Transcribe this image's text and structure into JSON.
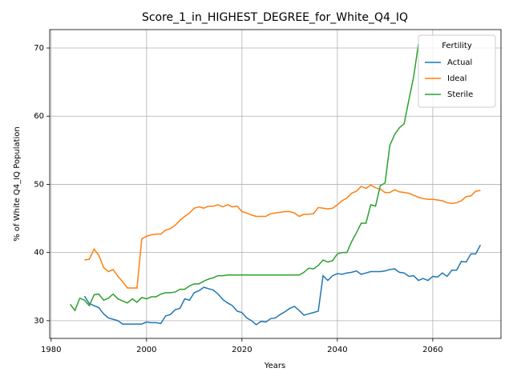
{
  "chart_data": {
    "type": "line",
    "title": "Score_1_in_HIGHEST_DEGREE_for_White_Q4_IQ",
    "xlabel": "Years",
    "ylabel": "% of White Q4_IQ Population",
    "legend_title": "Fertility",
    "legend": "upper right",
    "grid": true,
    "xlim": [
      1979.7,
      2074.3
    ],
    "xticks": [
      1980,
      2000,
      2020,
      2040,
      2060
    ],
    "ylim": [
      27.4,
      72.7
    ],
    "yticks": [
      30,
      40,
      50,
      60,
      70
    ],
    "x": [
      1984,
      1985,
      1986,
      1987,
      1988,
      1989,
      1990,
      1991,
      1992,
      1993,
      1994,
      1995,
      1996,
      1997,
      1998,
      1999,
      2000,
      2001,
      2002,
      2003,
      2004,
      2005,
      2006,
      2007,
      2008,
      2009,
      2010,
      2011,
      2012,
      2013,
      2014,
      2015,
      2016,
      2017,
      2018,
      2019,
      2020,
      2021,
      2022,
      2023,
      2024,
      2025,
      2026,
      2027,
      2028,
      2029,
      2030,
      2031,
      2032,
      2033,
      2034,
      2035,
      2036,
      2037,
      2038,
      2039,
      2040,
      2041,
      2042,
      2043,
      2044,
      2045,
      2046,
      2047,
      2048,
      2049,
      2050,
      2051,
      2052,
      2053,
      2054,
      2055,
      2056,
      2057,
      2058,
      2059,
      2060,
      2061,
      2062,
      2063,
      2064,
      2065,
      2066,
      2067,
      2068,
      2069,
      2070
    ],
    "series": [
      {
        "name": "Actual",
        "color": "#1f77b4",
        "values": [
          null,
          null,
          null,
          33.6,
          32.5,
          32.2,
          31.9,
          31.0,
          30.4,
          30.2,
          30.0,
          29.5,
          29.5,
          29.5,
          29.5,
          29.5,
          29.8,
          29.7,
          29.7,
          29.6,
          30.7,
          30.9,
          31.6,
          31.8,
          33.2,
          33.0,
          34.1,
          34.4,
          34.9,
          34.7,
          34.5,
          33.9,
          33.1,
          32.6,
          32.2,
          31.4,
          31.2,
          30.4,
          30.0,
          29.4,
          29.9,
          29.8,
          30.3,
          30.4,
          30.9,
          31.3,
          31.8,
          32.1,
          31.5,
          30.8,
          31.0,
          31.2,
          31.4,
          36.6,
          35.9,
          36.6,
          36.9,
          36.8,
          37.0,
          37.1,
          37.3,
          36.8,
          37.0,
          37.2,
          37.2,
          37.2,
          37.3,
          37.5,
          37.6,
          37.1,
          37.0,
          36.5,
          36.6,
          35.9,
          36.2,
          35.9,
          36.5,
          36.4,
          37.0,
          36.5,
          37.4,
          37.4,
          38.7,
          38.6,
          39.8,
          39.8,
          41.1
        ]
      },
      {
        "name": "Ideal",
        "color": "#ff7f0e",
        "values": [
          null,
          null,
          null,
          38.9,
          39.0,
          40.5,
          39.6,
          37.8,
          37.2,
          37.5,
          36.5,
          35.7,
          34.8,
          34.8,
          34.8,
          42.0,
          42.4,
          42.6,
          42.7,
          42.7,
          43.3,
          43.5,
          44.0,
          44.7,
          45.3,
          45.8,
          46.5,
          46.7,
          46.5,
          46.8,
          46.8,
          47.0,
          46.7,
          47.0,
          46.7,
          46.8,
          46.0,
          45.8,
          45.5,
          45.3,
          45.3,
          45.3,
          45.7,
          45.8,
          45.9,
          46.0,
          46.0,
          45.8,
          45.3,
          45.6,
          45.6,
          45.7,
          46.6,
          46.5,
          46.4,
          46.5,
          47.0,
          47.6,
          48.0,
          48.7,
          49.0,
          49.7,
          49.4,
          49.9,
          49.5,
          49.3,
          48.8,
          48.8,
          49.2,
          48.9,
          48.8,
          48.7,
          48.4,
          48.1,
          47.9,
          47.8,
          47.8,
          47.7,
          47.6,
          47.3,
          47.2,
          47.3,
          47.6,
          48.2,
          48.3,
          49.0,
          49.1
        ]
      },
      {
        "name": "Sterile",
        "color": "#2ca02c",
        "values": [
          32.4,
          31.5,
          33.3,
          33.0,
          32.2,
          33.8,
          33.9,
          33.0,
          33.3,
          33.9,
          33.2,
          32.9,
          32.6,
          33.2,
          32.7,
          33.4,
          33.2,
          33.5,
          33.5,
          33.9,
          34.1,
          34.1,
          34.2,
          34.6,
          34.6,
          35.1,
          35.4,
          35.4,
          35.8,
          36.1,
          36.3,
          36.6,
          36.6,
          36.7,
          36.7,
          36.7,
          36.7,
          36.7,
          36.7,
          36.7,
          36.7,
          36.7,
          36.7,
          36.7,
          36.7,
          36.7,
          36.7,
          36.7,
          36.7,
          37.1,
          37.7,
          37.6,
          38.1,
          38.9,
          38.6,
          38.8,
          39.8,
          40.0,
          40.0,
          41.6,
          42.9,
          44.3,
          44.3,
          47.0,
          46.8,
          49.8,
          50.2,
          55.7,
          57.3,
          58.3,
          58.9,
          62.4,
          65.8,
          70.6,
          null,
          null,
          null,
          null,
          null,
          null,
          null,
          null,
          null,
          null,
          null,
          null,
          null
        ]
      }
    ]
  }
}
